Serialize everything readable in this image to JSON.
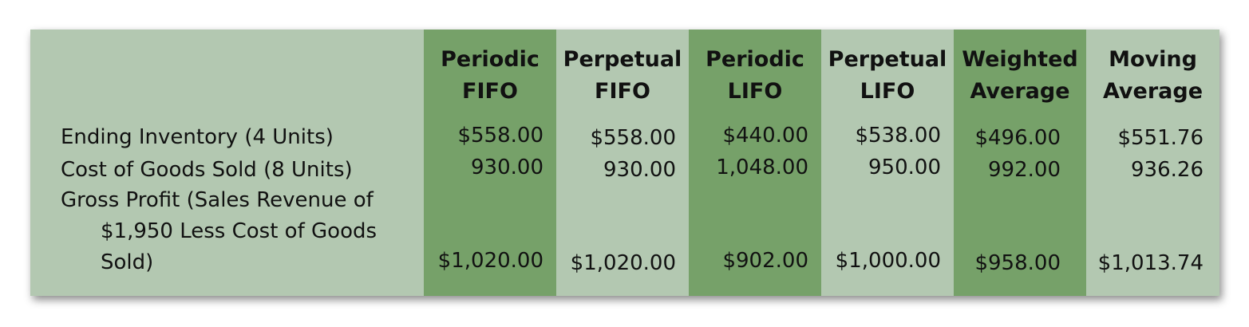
{
  "table": {
    "columns": [
      {
        "line1": "Periodic",
        "line2": "FIFO",
        "values": [
          "$558.00",
          "930.00",
          "$1,020.00"
        ]
      },
      {
        "line1": "Perpetual",
        "line2": "FIFO",
        "values": [
          "$558.00",
          "930.00",
          "$1,020.00"
        ]
      },
      {
        "line1": "Periodic",
        "line2": "LIFO",
        "values": [
          "$440.00",
          "1,048.00",
          "$902.00"
        ]
      },
      {
        "line1": "Perpetual",
        "line2": "LIFO",
        "values": [
          "$538.00",
          "950.00",
          "$1,000.00"
        ]
      },
      {
        "line1": "Weighted",
        "line2": "Average",
        "values": [
          "$496.00",
          "992.00",
          "$958.00"
        ]
      },
      {
        "line1": "Moving",
        "line2": "Average",
        "values": [
          "$551.76",
          "936.26",
          "$1,013.74"
        ]
      }
    ],
    "rows": [
      {
        "lines": [
          "Ending Inventory (4 Units)"
        ]
      },
      {
        "lines": [
          "Cost of Goods Sold (8 Units)"
        ]
      },
      {
        "lines": [
          "Gross Profit (Sales Revenue of",
          "$1,950 Less Cost of Goods",
          "Sold)"
        ]
      }
    ]
  },
  "colors": {
    "dark_column": "#76a169",
    "light_column": "#b3c8b1"
  }
}
